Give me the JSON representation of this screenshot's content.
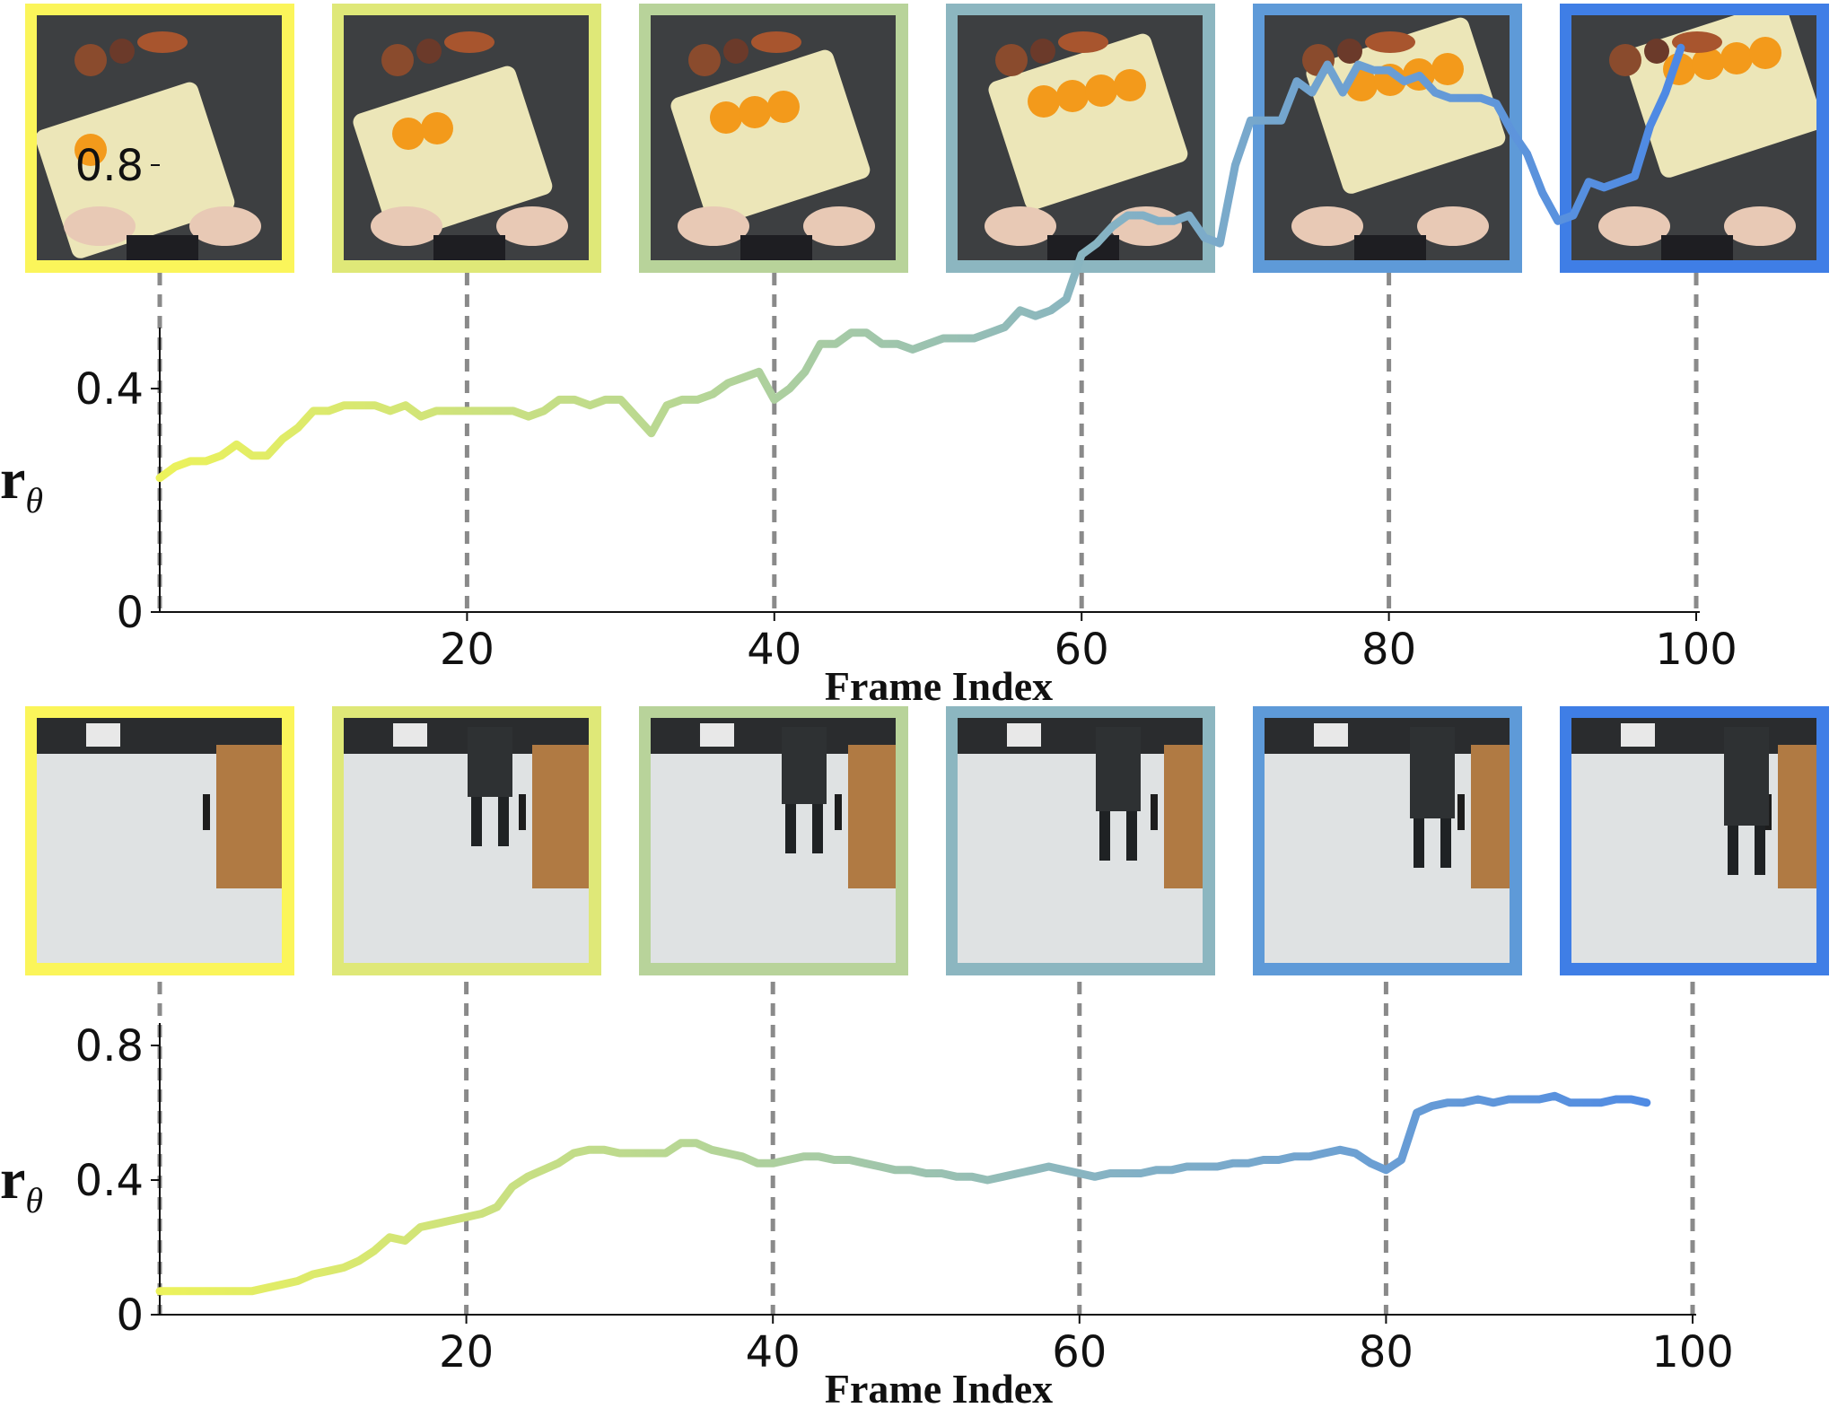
{
  "chart_data": [
    {
      "type": "line",
      "xlabel": "Frame Index",
      "ylabel": "r",
      "ylabel_subscript": "θ",
      "xlim": [
        0,
        100
      ],
      "ylim": [
        0,
        1.05
      ],
      "xticks": [
        20,
        40,
        60,
        80,
        100
      ],
      "xtick_labels": [
        "20",
        "40",
        "60",
        "80",
        "100"
      ],
      "yticks": [
        0,
        0.4,
        0.8
      ],
      "ytick_labels": [
        "0",
        "0.4",
        "0.8"
      ],
      "gradient_colors": [
        "#ecf25b",
        "#b6d696",
        "#85b2c4",
        "#4b87e6"
      ],
      "frame_markers": [
        0,
        20,
        40,
        60,
        80,
        100
      ],
      "thumbnail_scene": "kitchen",
      "thumbnail_border_colors": [
        "#fbf55a",
        "#dfe878",
        "#b8d39a",
        "#8cb6c0",
        "#5e9ad8",
        "#3f7ee6"
      ],
      "x": [
        0,
        1,
        2,
        3,
        4,
        5,
        6,
        7,
        8,
        9,
        10,
        11,
        12,
        13,
        14,
        15,
        16,
        17,
        18,
        19,
        20,
        21,
        22,
        23,
        24,
        25,
        26,
        27,
        28,
        29,
        30,
        31,
        32,
        33,
        34,
        35,
        36,
        37,
        38,
        39,
        40,
        41,
        42,
        43,
        44,
        45,
        46,
        47,
        48,
        49,
        50,
        51,
        52,
        53,
        54,
        55,
        56,
        57,
        58,
        59,
        60,
        61,
        62,
        63,
        64,
        65,
        66,
        67,
        68,
        69,
        70,
        71,
        72,
        73,
        74,
        75,
        76,
        77,
        78,
        79,
        80,
        81,
        82,
        83,
        84,
        85,
        86,
        87,
        88,
        89,
        90,
        91,
        92,
        93,
        94,
        95,
        96,
        97,
        98,
        99
      ],
      "y": [
        0.24,
        0.26,
        0.27,
        0.27,
        0.28,
        0.3,
        0.28,
        0.28,
        0.31,
        0.33,
        0.36,
        0.36,
        0.37,
        0.37,
        0.37,
        0.36,
        0.37,
        0.35,
        0.36,
        0.36,
        0.36,
        0.36,
        0.36,
        0.36,
        0.35,
        0.36,
        0.38,
        0.38,
        0.37,
        0.38,
        0.38,
        0.35,
        0.32,
        0.37,
        0.38,
        0.38,
        0.39,
        0.41,
        0.42,
        0.43,
        0.38,
        0.4,
        0.43,
        0.48,
        0.48,
        0.5,
        0.5,
        0.48,
        0.48,
        0.47,
        0.48,
        0.49,
        0.49,
        0.49,
        0.5,
        0.51,
        0.54,
        0.53,
        0.54,
        0.56,
        0.64,
        0.66,
        0.69,
        0.71,
        0.71,
        0.7,
        0.7,
        0.71,
        0.67,
        0.66,
        0.8,
        0.88,
        0.88,
        0.88,
        0.95,
        0.93,
        0.98,
        0.93,
        0.98,
        0.97,
        0.97,
        0.95,
        0.96,
        0.93,
        0.92,
        0.92,
        0.92,
        0.91,
        0.86,
        0.82,
        0.75,
        0.7,
        0.71,
        0.77,
        0.76,
        0.77,
        0.78,
        0.87,
        0.93,
        1.01
      ]
    },
    {
      "type": "line",
      "xlabel": "Frame Index",
      "ylabel": "r",
      "ylabel_subscript": "θ",
      "xlim": [
        0,
        100
      ],
      "ylim": [
        0,
        0.98
      ],
      "xticks": [
        20,
        40,
        60,
        80,
        100
      ],
      "xtick_labels": [
        "20",
        "40",
        "60",
        "80",
        "100"
      ],
      "yticks": [
        0,
        0.4,
        0.8
      ],
      "ytick_labels": [
        "0",
        "0.4",
        "0.8"
      ],
      "gradient_colors": [
        "#ecf25b",
        "#b6d696",
        "#85b2c4",
        "#4b87e6"
      ],
      "frame_markers": [
        0,
        20,
        40,
        60,
        80,
        100
      ],
      "thumbnail_scene": "robot",
      "thumbnail_border_colors": [
        "#fbf55a",
        "#dfe878",
        "#b8d39a",
        "#8cb6c0",
        "#5e9ad8",
        "#3f7ee6"
      ],
      "x": [
        0,
        1,
        2,
        3,
        4,
        5,
        6,
        7,
        8,
        9,
        10,
        11,
        12,
        13,
        14,
        15,
        16,
        17,
        18,
        19,
        20,
        21,
        22,
        23,
        24,
        25,
        26,
        27,
        28,
        29,
        30,
        31,
        32,
        33,
        34,
        35,
        36,
        37,
        38,
        39,
        40,
        41,
        42,
        43,
        44,
        45,
        46,
        47,
        48,
        49,
        50,
        51,
        52,
        53,
        54,
        55,
        56,
        57,
        58,
        59,
        60,
        61,
        62,
        63,
        64,
        65,
        66,
        67,
        68,
        69,
        70,
        71,
        72,
        73,
        74,
        75,
        76,
        77,
        78,
        79,
        80,
        81,
        82,
        83,
        84,
        85,
        86,
        87,
        88,
        89,
        90,
        91,
        92,
        93,
        94,
        95,
        96,
        97
      ],
      "y": [
        0.07,
        0.07,
        0.07,
        0.07,
        0.07,
        0.07,
        0.07,
        0.08,
        0.09,
        0.1,
        0.12,
        0.13,
        0.14,
        0.16,
        0.19,
        0.23,
        0.22,
        0.26,
        0.27,
        0.28,
        0.29,
        0.3,
        0.32,
        0.38,
        0.41,
        0.43,
        0.45,
        0.48,
        0.49,
        0.49,
        0.48,
        0.48,
        0.48,
        0.48,
        0.51,
        0.51,
        0.49,
        0.48,
        0.47,
        0.45,
        0.45,
        0.46,
        0.47,
        0.47,
        0.46,
        0.46,
        0.45,
        0.44,
        0.43,
        0.43,
        0.42,
        0.42,
        0.41,
        0.41,
        0.4,
        0.41,
        0.42,
        0.43,
        0.44,
        0.43,
        0.42,
        0.41,
        0.42,
        0.42,
        0.42,
        0.43,
        0.43,
        0.44,
        0.44,
        0.44,
        0.45,
        0.45,
        0.46,
        0.46,
        0.47,
        0.47,
        0.48,
        0.49,
        0.48,
        0.45,
        0.43,
        0.46,
        0.6,
        0.62,
        0.63,
        0.63,
        0.64,
        0.63,
        0.64,
        0.64,
        0.64,
        0.65,
        0.63,
        0.63,
        0.63,
        0.64,
        0.64,
        0.63
      ]
    }
  ]
}
